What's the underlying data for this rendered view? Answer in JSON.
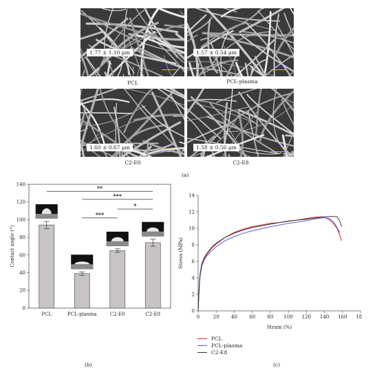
{
  "panels": {
    "a": {
      "label": "(a)",
      "images": [
        {
          "name": "PCL",
          "measurement": "1.77 ± 1.10 µm"
        },
        {
          "name": "PCL-plasma",
          "measurement": "1.57 ± 0.54 µm"
        },
        {
          "name": "C2-E0",
          "measurement": "1.60 ± 0.67 µm"
        },
        {
          "name": "C2-E8",
          "measurement": "1.58 ± 0.56 µm"
        }
      ]
    },
    "b": {
      "label": "(b)"
    },
    "c": {
      "label": "(c)"
    }
  },
  "chart_data": [
    {
      "type": "bar",
      "panel": "b",
      "categories": [
        "PCL",
        "PCL-plasma",
        "C2-E0",
        "C2-E8"
      ],
      "values": [
        94,
        39,
        65,
        74
      ],
      "errors": [
        4,
        2,
        2,
        4
      ],
      "ylabel": "Contact angle (°)",
      "xlabel": "",
      "ylim": [
        0,
        140
      ],
      "yticks": [
        0,
        20,
        40,
        60,
        80,
        100,
        120,
        140
      ],
      "bar_color": "#c9c4c4",
      "significance": [
        {
          "from": "PCL",
          "to": "C2-E8",
          "label": "**",
          "y": 132
        },
        {
          "from": "PCL-plasma",
          "to": "C2-E8",
          "label": "***",
          "y": 123
        },
        {
          "from": "PCL-plasma",
          "to": "C2-E0",
          "label": "***",
          "y": 102
        },
        {
          "from": "C2-E0",
          "to": "C2-E8",
          "label": "*",
          "y": 112
        }
      ]
    },
    {
      "type": "line",
      "panel": "c",
      "xlabel": "Strain (%)",
      "ylabel": "Stress (MPa)",
      "xlim": [
        0,
        180
      ],
      "ylim": [
        0,
        14
      ],
      "xticks": [
        0,
        20,
        40,
        60,
        80,
        100,
        120,
        140,
        160,
        180
      ],
      "yticks": [
        0,
        2,
        4,
        6,
        8,
        10,
        12,
        14
      ],
      "series": [
        {
          "name": "PCL",
          "color": "#e02020",
          "x": [
            0,
            1,
            2,
            4,
            7,
            10,
            15,
            20,
            30,
            40,
            50,
            60,
            70,
            80,
            90,
            100,
            110,
            120,
            130,
            138,
            145,
            150,
            154,
            157,
            159
          ],
          "y": [
            0,
            2.5,
            4.2,
            5.6,
            6.4,
            6.9,
            7.6,
            8.1,
            8.9,
            9.5,
            9.9,
            10.2,
            10.4,
            10.6,
            10.7,
            10.9,
            11.0,
            11.2,
            11.35,
            11.4,
            11.1,
            10.6,
            10.0,
            9.2,
            8.5
          ]
        },
        {
          "name": "PCL-plasma",
          "color": "#5b5bd6",
          "x": [
            0,
            1,
            2,
            4,
            7,
            10,
            15,
            20,
            30,
            40,
            50,
            60,
            70,
            80,
            90,
            100,
            110,
            120,
            130,
            140,
            145,
            150,
            154,
            157
          ],
          "y": [
            0,
            2.3,
            4.0,
            5.4,
            6.2,
            6.7,
            7.3,
            7.8,
            8.5,
            9.0,
            9.4,
            9.7,
            9.95,
            10.2,
            10.4,
            10.6,
            10.75,
            10.95,
            11.15,
            11.3,
            11.2,
            10.8,
            10.1,
            9.5
          ]
        },
        {
          "name": "C2-E8",
          "color": "#333333",
          "x": [
            0,
            1,
            2,
            4,
            7,
            10,
            15,
            20,
            30,
            40,
            50,
            60,
            70,
            80,
            90,
            100,
            110,
            120,
            130,
            140,
            148,
            154,
            157,
            159
          ],
          "y": [
            0,
            2.6,
            4.3,
            5.7,
            6.5,
            7.0,
            7.7,
            8.2,
            8.9,
            9.4,
            9.8,
            10.1,
            10.3,
            10.5,
            10.7,
            10.85,
            11.0,
            11.1,
            11.25,
            11.4,
            11.45,
            11.4,
            10.9,
            10.2
          ]
        }
      ]
    }
  ]
}
